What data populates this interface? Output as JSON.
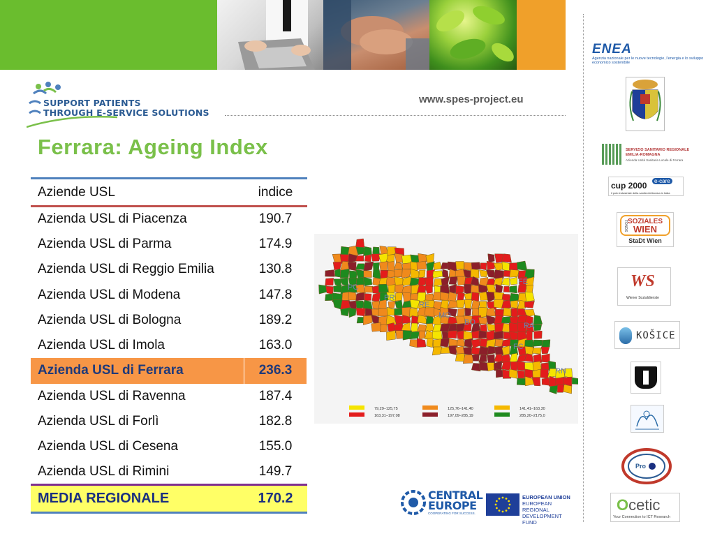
{
  "header": {
    "website": "www.spes-project.eu",
    "logo_line1": "SUPPORT PATIENTS",
    "logo_line2": "THROUGH E-SERVICE SOLUTIONS"
  },
  "title": "Ferrara: Ageing Index",
  "table": {
    "col_name": "Aziende USL",
    "col_value": "indice",
    "rows": [
      {
        "name": "Azienda USL di Piacenza",
        "value": "190.7"
      },
      {
        "name": "Azienda USL di Parma",
        "value": "174.9"
      },
      {
        "name": "Azienda USL di Reggio Emilia",
        "value": "130.8"
      },
      {
        "name": "Azienda USL di Modena",
        "value": "147.8"
      },
      {
        "name": "Azienda USL di Bologna",
        "value": "189.2"
      },
      {
        "name": "Azienda USL di Imola",
        "value": "163.0"
      },
      {
        "name": "Azienda USL di Ferrara",
        "value": "236.3"
      },
      {
        "name": "Azienda USL di Ravenna",
        "value": "187.4"
      },
      {
        "name": "Azienda USL di Forlì",
        "value": "182.8"
      },
      {
        "name": "Azienda USL di Cesena",
        "value": "155.0"
      },
      {
        "name": "Azienda USL di Rimini",
        "value": "149.7"
      }
    ],
    "highlight_index": 6,
    "total_name": "MEDIA REGIONALE",
    "total_value": "170.2"
  },
  "map": {
    "province_labels": [
      "PC",
      "PR",
      "RE",
      "MO",
      "BO",
      "FE",
      "RA",
      "FC",
      "RN"
    ],
    "legend": [
      {
        "label": "79,29–125,75",
        "color": "#f5e400"
      },
      {
        "label": "125,76–141,40",
        "color": "#f08a1c"
      },
      {
        "label": "141,41–163,30",
        "color": "#f5b800"
      },
      {
        "label": "163,31–197,08",
        "color": "#e31c1c"
      },
      {
        "label": "197,09–285,19",
        "color": "#8b1f2a"
      },
      {
        "label": "285,20–2175,0",
        "color": "#1e8a1e"
      }
    ]
  },
  "partners": {
    "enea_name": "ENEA",
    "enea_sub": "Agenzia nazionale per le nuove tecnologie, l'energia e lo sviluppo economico sostenibile",
    "ssr_text": "SERVIZIO SANITARIO REGIONALE EMILIA-ROMAGNA",
    "ssr_sub": "Azienda Unità Sanitaria Locale di Ferrara",
    "cup_main": "cup 2000",
    "cup_sub": "il polo industriale della sanità elettronica in Italia",
    "cup_tag": "e-care",
    "wien_line1": "FONDS",
    "wien_line2": "SOZIALES",
    "wien_line3": "WIEN",
    "wien_sub": "StaDt Wien",
    "ws_main": "WS",
    "ws_sub": "Wiener Sozialdienste",
    "kosice_text": "KOŠICE",
    "ocetic_text": "cetic",
    "ocetic_o": "O",
    "ocetic_sub": "Your Connection to ICT Research",
    "ce_line1": "CENTRAL",
    "ce_line2": "EUROPE",
    "ce_sub": "COOPERATING FOR SUCCESS.",
    "eu_line1": "EUROPEAN UNION",
    "eu_line2": "EUROPEAN REGIONAL",
    "eu_line3": "DEVELOPMENT FUND"
  }
}
